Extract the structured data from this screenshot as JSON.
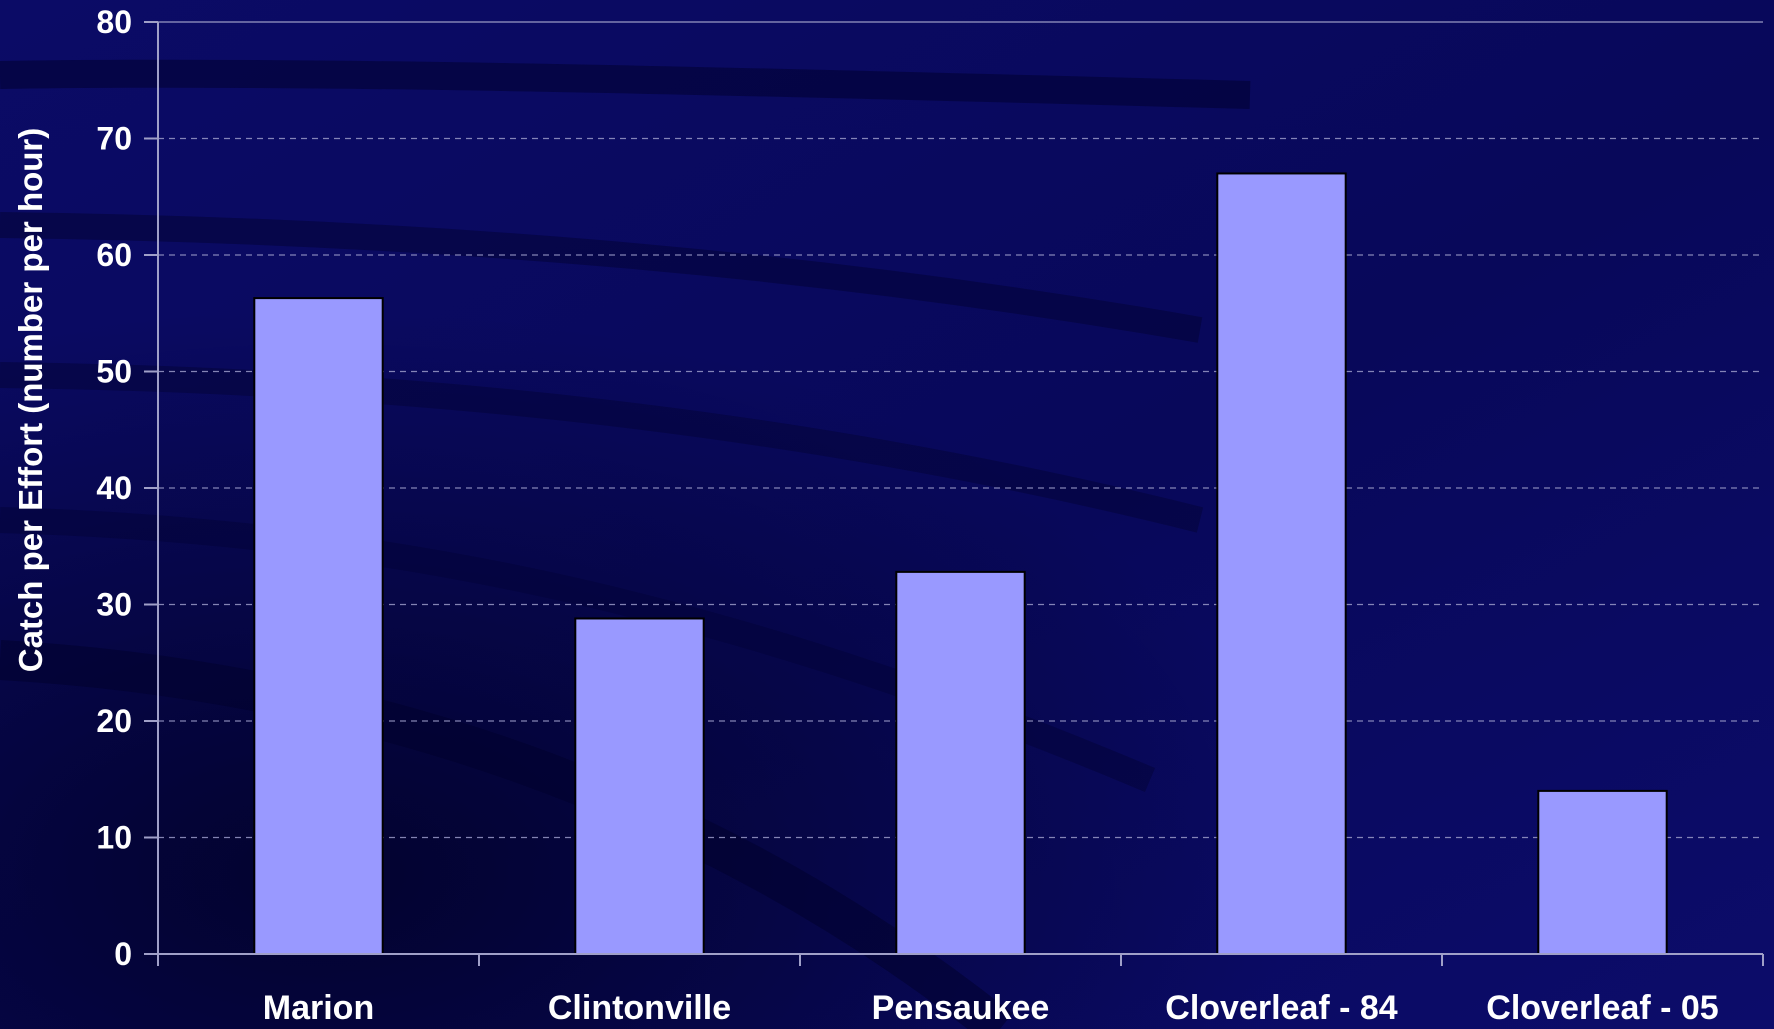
{
  "colors": {
    "background": "#0a0a5c",
    "bar_fill": "#9999ff",
    "bar_stroke": "#000000",
    "axis": "#a0a0c8",
    "gridline": "#9a9ac8",
    "text": "#ffffff"
  },
  "chart_data": {
    "type": "bar",
    "title": "",
    "xlabel": "",
    "ylabel": "Catch per Effort (number per hour)",
    "categories": [
      "Marion",
      "Clintonville",
      "Pensaukee",
      "Cloverleaf - 84",
      "Cloverleaf - 05"
    ],
    "series": [
      {
        "values": [
          56.3,
          28.8,
          32.8,
          67.0,
          14.0
        ]
      }
    ],
    "ylim": [
      0,
      80
    ],
    "yticks": [
      0,
      10,
      20,
      30,
      40,
      50,
      60,
      70,
      80
    ],
    "ytick_labels": [
      "0",
      "10",
      "20",
      "30",
      "40",
      "50",
      "60",
      "70",
      "80"
    ],
    "grid": "horizontal dashed",
    "legend": "none"
  }
}
